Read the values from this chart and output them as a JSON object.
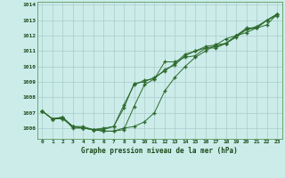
{
  "title": "Graphe pression niveau de la mer (hPa)",
  "bg_color": "#ccecea",
  "grid_color": "#aacccc",
  "line_color": "#2d6a2d",
  "marker_color": "#2d6a2d",
  "xmin": -0.5,
  "xmax": 23.5,
  "ymin": 1005.3,
  "ymax": 1014.2,
  "yticks": [
    1006,
    1007,
    1008,
    1009,
    1010,
    1011,
    1012,
    1013,
    1014
  ],
  "series": [
    [
      1007.1,
      1006.6,
      1006.7,
      1006.1,
      1006.0,
      1005.9,
      1005.8,
      1005.8,
      1005.9,
      1007.4,
      1008.8,
      1009.2,
      1010.3,
      1010.3,
      1010.6,
      1010.7,
      1011.2,
      1011.2,
      1011.5,
      1012.0,
      1012.5,
      1012.5,
      1013.0,
      1013.4
    ],
    [
      1007.1,
      1006.6,
      1006.7,
      1006.1,
      1006.0,
      1005.9,
      1006.0,
      1006.1,
      1007.3,
      1008.9,
      1009.0,
      1009.3,
      1009.7,
      1010.2,
      1010.8,
      1011.0,
      1011.3,
      1011.4,
      1011.5,
      1011.9,
      1012.4,
      1012.5,
      1013.0,
      1013.4
    ],
    [
      1007.1,
      1006.6,
      1006.6,
      1006.1,
      1006.1,
      1005.9,
      1005.9,
      1006.1,
      1007.5,
      1008.8,
      1009.1,
      1009.2,
      1009.8,
      1010.1,
      1010.7,
      1011.0,
      1011.2,
      1011.3,
      1011.5,
      1012.0,
      1012.4,
      1012.6,
      1013.0,
      1013.3
    ],
    [
      1007.1,
      1006.6,
      1006.7,
      1006.0,
      1006.0,
      1005.9,
      1005.8,
      1005.8,
      1006.0,
      1006.1,
      1006.4,
      1007.0,
      1008.4,
      1009.3,
      1010.0,
      1010.6,
      1011.0,
      1011.4,
      1011.8,
      1012.0,
      1012.2,
      1012.5,
      1012.7,
      1013.4
    ]
  ]
}
